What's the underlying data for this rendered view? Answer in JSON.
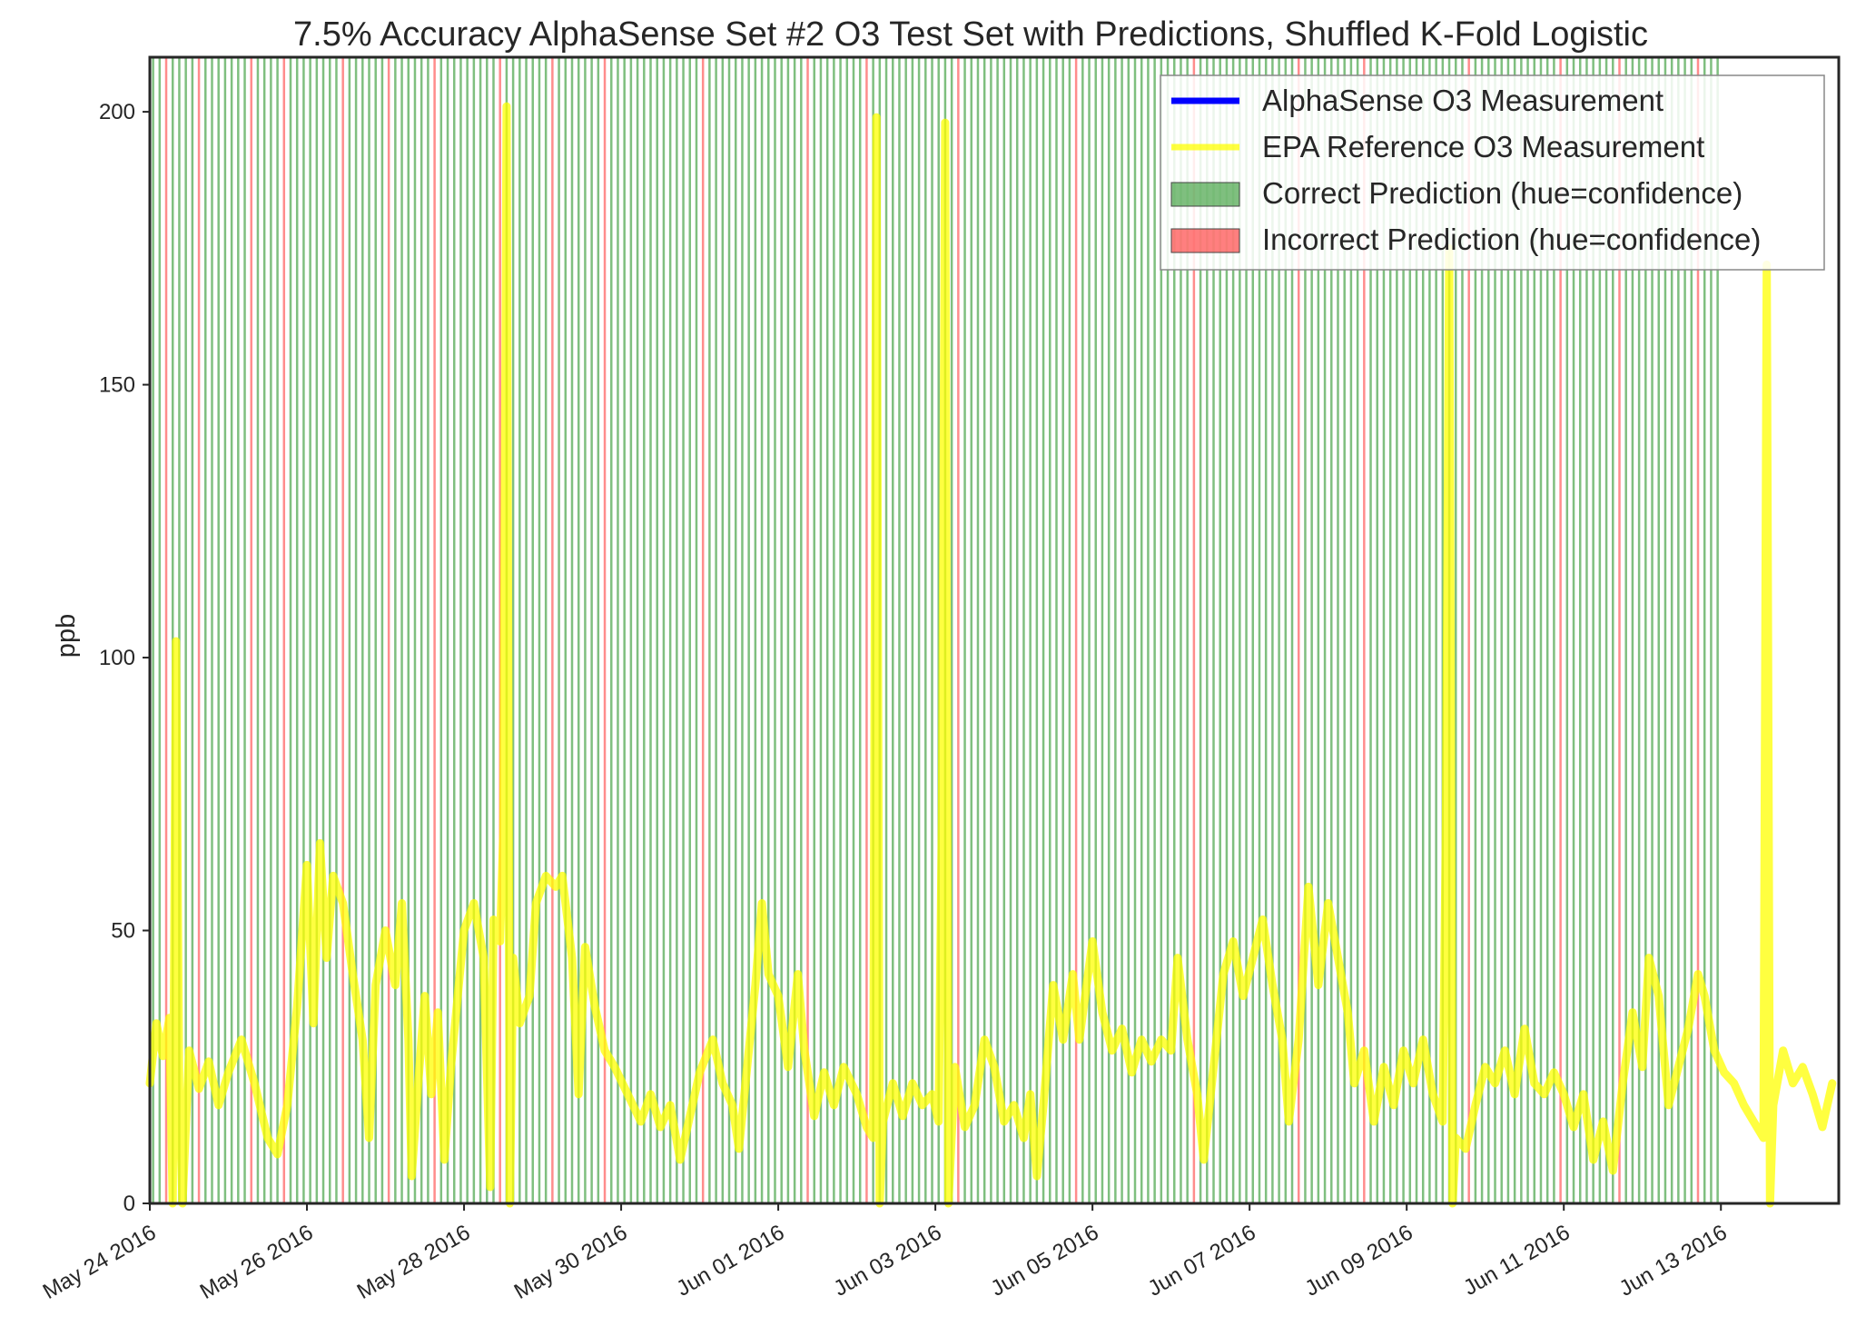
{
  "chart_data": {
    "type": "line",
    "title": "7.5% Accuracy AlphaSense Set #2 O3 Test Set with Predictions, Shuffled K-Fold Logistic",
    "xlabel": "",
    "ylabel": "ppb",
    "xlim": [
      "2016-05-24",
      "2016-06-14T12:00"
    ],
    "ylim": [
      0,
      210
    ],
    "yticks": [
      0,
      50,
      100,
      150,
      200
    ],
    "xticks": [
      "2016-05-24",
      "2016-05-26",
      "2016-05-28",
      "2016-05-30",
      "2016-06-01",
      "2016-06-03",
      "2016-06-05",
      "2016-06-07",
      "2016-06-09",
      "2016-06-11",
      "2016-06-13"
    ],
    "xtick_labels": [
      "May 24 2016",
      "May 26 2016",
      "May 28 2016",
      "May 30 2016",
      "Jun 01 2016",
      "Jun 03 2016",
      "Jun 05 2016",
      "Jun 07 2016",
      "Jun 09 2016",
      "Jun 11 2016",
      "Jun 13 2016"
    ],
    "grid": false,
    "legend_position": "top-right",
    "legend": [
      {
        "label": "AlphaSense O3 Measurement",
        "kind": "line",
        "color": "#0000ff"
      },
      {
        "label": "EPA Reference O3 Measurement",
        "kind": "line",
        "color": "#ffff00"
      },
      {
        "label": "Correct Prediction (hue=confidence)",
        "kind": "patch",
        "color": "#008000"
      },
      {
        "label": "Incorrect Prediction (hue=confidence)",
        "kind": "patch",
        "color": "#ff0000"
      }
    ],
    "series": [
      {
        "name": "EPA Reference O3 Measurement",
        "color": "#ffff00",
        "points": [
          [
            "2016-05-24T00:00",
            22
          ],
          [
            "2016-05-24T02:00",
            33
          ],
          [
            "2016-05-24T04:00",
            27
          ],
          [
            "2016-05-24T06:00",
            34
          ],
          [
            "2016-05-24T07:00",
            0
          ],
          [
            "2016-05-24T08:00",
            103
          ],
          [
            "2016-05-24T09:00",
            20
          ],
          [
            "2016-05-24T10:00",
            0
          ],
          [
            "2016-05-24T12:00",
            28
          ],
          [
            "2016-05-24T15:00",
            21
          ],
          [
            "2016-05-24T18:00",
            26
          ],
          [
            "2016-05-24T21:00",
            18
          ],
          [
            "2016-05-25T00:00",
            24
          ],
          [
            "2016-05-25T04:00",
            30
          ],
          [
            "2016-05-25T08:00",
            22
          ],
          [
            "2016-05-25T12:00",
            12
          ],
          [
            "2016-05-25T15:00",
            9
          ],
          [
            "2016-05-25T18:00",
            18
          ],
          [
            "2016-05-25T21:00",
            36
          ],
          [
            "2016-05-26T00:00",
            62
          ],
          [
            "2016-05-26T02:00",
            33
          ],
          [
            "2016-05-26T04:00",
            66
          ],
          [
            "2016-05-26T06:00",
            45
          ],
          [
            "2016-05-26T08:00",
            60
          ],
          [
            "2016-05-26T11:00",
            55
          ],
          [
            "2016-05-26T14:00",
            42
          ],
          [
            "2016-05-26T17:00",
            30
          ],
          [
            "2016-05-26T19:00",
            12
          ],
          [
            "2016-05-26T21:00",
            40
          ],
          [
            "2016-05-27T00:00",
            50
          ],
          [
            "2016-05-27T03:00",
            40
          ],
          [
            "2016-05-27T05:00",
            55
          ],
          [
            "2016-05-27T07:00",
            30
          ],
          [
            "2016-05-27T08:00",
            5
          ],
          [
            "2016-05-27T10:00",
            22
          ],
          [
            "2016-05-27T12:00",
            38
          ],
          [
            "2016-05-27T14:00",
            20
          ],
          [
            "2016-05-27T16:00",
            35
          ],
          [
            "2016-05-27T18:00",
            8
          ],
          [
            "2016-05-27T20:00",
            25
          ],
          [
            "2016-05-28T00:00",
            50
          ],
          [
            "2016-05-28T03:00",
            55
          ],
          [
            "2016-05-28T06:00",
            45
          ],
          [
            "2016-05-28T08:00",
            3
          ],
          [
            "2016-05-28T09:00",
            52
          ],
          [
            "2016-05-28T11:00",
            48
          ],
          [
            "2016-05-28T12:00",
            68
          ],
          [
            "2016-05-28T13:00",
            201
          ],
          [
            "2016-05-28T14:00",
            0
          ],
          [
            "2016-05-28T15:00",
            45
          ],
          [
            "2016-05-28T17:00",
            33
          ],
          [
            "2016-05-28T20:00",
            38
          ],
          [
            "2016-05-28T22:00",
            55
          ],
          [
            "2016-05-29T01:00",
            60
          ],
          [
            "2016-05-29T04:00",
            58
          ],
          [
            "2016-05-29T06:00",
            60
          ],
          [
            "2016-05-29T09:00",
            45
          ],
          [
            "2016-05-29T11:00",
            20
          ],
          [
            "2016-05-29T13:00",
            47
          ],
          [
            "2016-05-29T16:00",
            36
          ],
          [
            "2016-05-29T19:00",
            28
          ],
          [
            "2016-05-29T22:00",
            25
          ],
          [
            "2016-05-30T02:00",
            20
          ],
          [
            "2016-05-30T06:00",
            15
          ],
          [
            "2016-05-30T09:00",
            20
          ],
          [
            "2016-05-30T12:00",
            14
          ],
          [
            "2016-05-30T15:00",
            18
          ],
          [
            "2016-05-30T18:00",
            8
          ],
          [
            "2016-05-30T21:00",
            16
          ],
          [
            "2016-05-31T00:00",
            24
          ],
          [
            "2016-05-31T04:00",
            30
          ],
          [
            "2016-05-31T07:00",
            22
          ],
          [
            "2016-05-31T10:00",
            18
          ],
          [
            "2016-05-31T12:00",
            10
          ],
          [
            "2016-05-31T14:00",
            22
          ],
          [
            "2016-05-31T17:00",
            40
          ],
          [
            "2016-05-31T19:00",
            55
          ],
          [
            "2016-05-31T21:00",
            42
          ],
          [
            "2016-06-01T00:00",
            38
          ],
          [
            "2016-06-01T03:00",
            25
          ],
          [
            "2016-06-01T06:00",
            42
          ],
          [
            "2016-06-01T08:00",
            28
          ],
          [
            "2016-06-01T11:00",
            16
          ],
          [
            "2016-06-01T14:00",
            24
          ],
          [
            "2016-06-01T17:00",
            18
          ],
          [
            "2016-06-01T20:00",
            25
          ],
          [
            "2016-06-02T00:00",
            20
          ],
          [
            "2016-06-02T03:00",
            14
          ],
          [
            "2016-06-02T05:00",
            12
          ],
          [
            "2016-06-02T06:00",
            199
          ],
          [
            "2016-06-02T07:00",
            0
          ],
          [
            "2016-06-02T08:00",
            15
          ],
          [
            "2016-06-02T11:00",
            22
          ],
          [
            "2016-06-02T14:00",
            16
          ],
          [
            "2016-06-02T17:00",
            22
          ],
          [
            "2016-06-02T20:00",
            18
          ],
          [
            "2016-06-02T23:00",
            20
          ],
          [
            "2016-06-03T01:00",
            15
          ],
          [
            "2016-06-03T02:00",
            70
          ],
          [
            "2016-06-03T03:00",
            198
          ],
          [
            "2016-06-03T04:00",
            0
          ],
          [
            "2016-06-03T06:00",
            25
          ],
          [
            "2016-06-03T09:00",
            14
          ],
          [
            "2016-06-03T12:00",
            18
          ],
          [
            "2016-06-03T15:00",
            30
          ],
          [
            "2016-06-03T18:00",
            25
          ],
          [
            "2016-06-03T21:00",
            15
          ],
          [
            "2016-06-04T00:00",
            18
          ],
          [
            "2016-06-04T03:00",
            12
          ],
          [
            "2016-06-04T05:00",
            20
          ],
          [
            "2016-06-04T07:00",
            5
          ],
          [
            "2016-06-04T09:00",
            18
          ],
          [
            "2016-06-04T12:00",
            40
          ],
          [
            "2016-06-04T15:00",
            30
          ],
          [
            "2016-06-04T18:00",
            42
          ],
          [
            "2016-06-04T20:00",
            30
          ],
          [
            "2016-06-05T00:00",
            48
          ],
          [
            "2016-06-05T03:00",
            35
          ],
          [
            "2016-06-05T06:00",
            28
          ],
          [
            "2016-06-05T09:00",
            32
          ],
          [
            "2016-06-05T12:00",
            24
          ],
          [
            "2016-06-05T15:00",
            30
          ],
          [
            "2016-06-05T18:00",
            26
          ],
          [
            "2016-06-05T21:00",
            30
          ],
          [
            "2016-06-06T00:00",
            28
          ],
          [
            "2016-06-06T02:00",
            45
          ],
          [
            "2016-06-06T05:00",
            30
          ],
          [
            "2016-06-06T08:00",
            20
          ],
          [
            "2016-06-06T10:00",
            8
          ],
          [
            "2016-06-06T13:00",
            25
          ],
          [
            "2016-06-06T16:00",
            42
          ],
          [
            "2016-06-06T19:00",
            48
          ],
          [
            "2016-06-06T22:00",
            38
          ],
          [
            "2016-06-07T01:00",
            45
          ],
          [
            "2016-06-07T04:00",
            52
          ],
          [
            "2016-06-07T07:00",
            40
          ],
          [
            "2016-06-07T10:00",
            30
          ],
          [
            "2016-06-07T12:00",
            15
          ],
          [
            "2016-06-07T15:00",
            30
          ],
          [
            "2016-06-07T18:00",
            58
          ],
          [
            "2016-06-07T21:00",
            40
          ],
          [
            "2016-06-08T00:00",
            55
          ],
          [
            "2016-06-08T03:00",
            45
          ],
          [
            "2016-06-08T06:00",
            35
          ],
          [
            "2016-06-08T08:00",
            22
          ],
          [
            "2016-06-08T11:00",
            28
          ],
          [
            "2016-06-08T14:00",
            15
          ],
          [
            "2016-06-08T17:00",
            25
          ],
          [
            "2016-06-08T20:00",
            18
          ],
          [
            "2016-06-08T23:00",
            28
          ],
          [
            "2016-06-09T02:00",
            22
          ],
          [
            "2016-06-09T05:00",
            30
          ],
          [
            "2016-06-09T08:00",
            20
          ],
          [
            "2016-06-09T11:00",
            15
          ],
          [
            "2016-06-09T12:00",
            70
          ],
          [
            "2016-06-09T13:00",
            175
          ],
          [
            "2016-06-09T14:00",
            0
          ],
          [
            "2016-06-09T15:00",
            12
          ],
          [
            "2016-06-09T18:00",
            10
          ],
          [
            "2016-06-09T21:00",
            18
          ],
          [
            "2016-06-10T00:00",
            25
          ],
          [
            "2016-06-10T03:00",
            22
          ],
          [
            "2016-06-10T06:00",
            28
          ],
          [
            "2016-06-10T09:00",
            20
          ],
          [
            "2016-06-10T12:00",
            32
          ],
          [
            "2016-06-10T15:00",
            22
          ],
          [
            "2016-06-10T18:00",
            20
          ],
          [
            "2016-06-10T21:00",
            24
          ],
          [
            "2016-06-11T00:00",
            20
          ],
          [
            "2016-06-11T03:00",
            14
          ],
          [
            "2016-06-11T06:00",
            20
          ],
          [
            "2016-06-11T09:00",
            8
          ],
          [
            "2016-06-11T12:00",
            15
          ],
          [
            "2016-06-11T15:00",
            6
          ],
          [
            "2016-06-11T18:00",
            22
          ],
          [
            "2016-06-11T21:00",
            35
          ],
          [
            "2016-06-12T00:00",
            25
          ],
          [
            "2016-06-12T02:00",
            45
          ],
          [
            "2016-06-12T05:00",
            38
          ],
          [
            "2016-06-12T08:00",
            18
          ],
          [
            "2016-06-12T11:00",
            25
          ],
          [
            "2016-06-12T14:00",
            32
          ],
          [
            "2016-06-12T17:00",
            42
          ],
          [
            "2016-06-12T19:00",
            38
          ],
          [
            "2016-06-12T22:00",
            28
          ],
          [
            "2016-06-13T01:00",
            24
          ],
          [
            "2016-06-13T04:00",
            22
          ],
          [
            "2016-06-13T07:00",
            18
          ],
          [
            "2016-06-13T10:00",
            15
          ],
          [
            "2016-06-13T13:00",
            12
          ],
          [
            "2016-06-13T14:00",
            172
          ],
          [
            "2016-06-13T15:00",
            0
          ],
          [
            "2016-06-13T16:00",
            18
          ],
          [
            "2016-06-13T19:00",
            28
          ],
          [
            "2016-06-13T22:00",
            22
          ],
          [
            "2016-06-14T01:00",
            25
          ],
          [
            "2016-06-14T04:00",
            20
          ],
          [
            "2016-06-14T07:00",
            14
          ],
          [
            "2016-06-14T10:00",
            22
          ]
        ]
      }
    ],
    "prediction_bands": {
      "start": "2016-05-24T00:00",
      "step_hours": 2,
      "colors": {
        "correct": "#008000",
        "incorrect": "#ff0000"
      },
      "pattern": "ggrggggrgggggggrggggrggggggggrggggggrggggggrgggggggggrgggggggrgggggggrggggggggggggggrgggggggggggggggrggggggggrgggggggggggggrgggggggggggggggggrgggggggggggggggggrgggggggggggggggrgggggggggrgggggggggggggggrgggggggggggggrggggggggrgggggggggggrggg"
    }
  }
}
